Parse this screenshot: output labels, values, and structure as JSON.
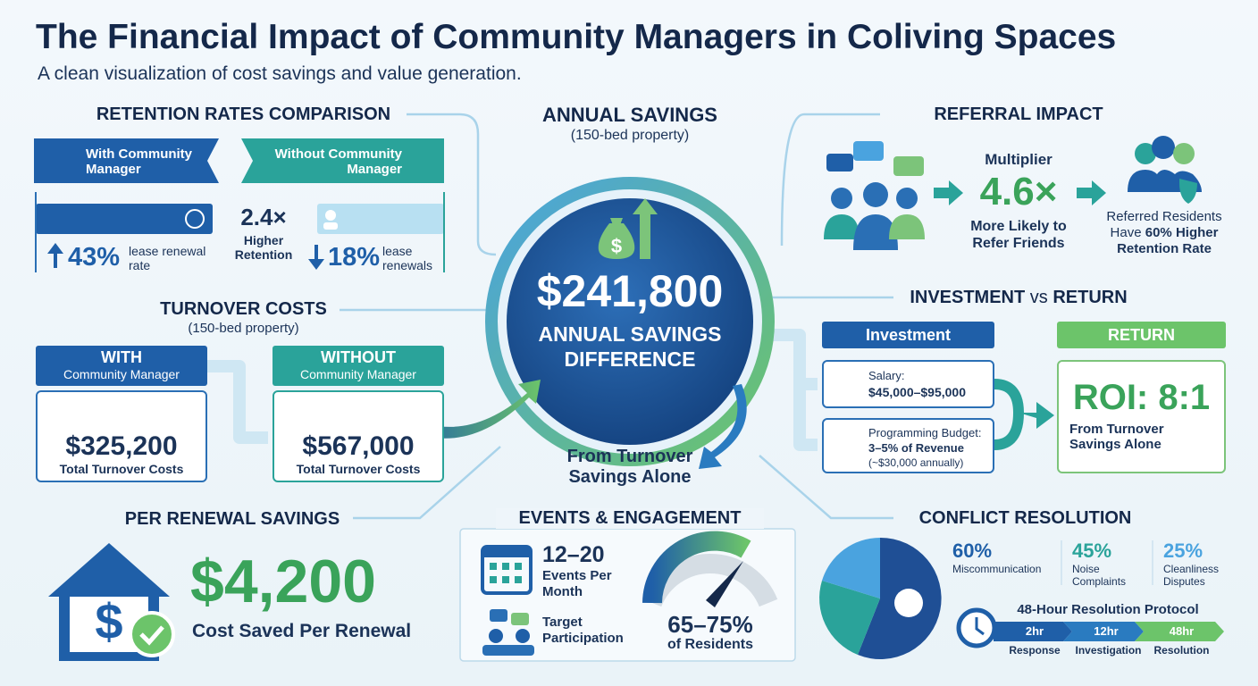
{
  "header": {
    "title": "The Financial Impact of Community Managers in Coliving Spaces",
    "subtitle": "A clean visualization of cost savings and value generation."
  },
  "retention": {
    "title": "RETENTION RATES COMPARISON",
    "with_label": "With Community Manager",
    "without_label": "Without Community Manager",
    "with_rate": "43%",
    "with_caption": "lease renewal rate",
    "without_rate": "18%",
    "without_caption": "lease renewals",
    "multiplier": "2.4×",
    "multiplier_caption": "Higher Retention"
  },
  "savings": {
    "title": "ANNUAL SAVINGS",
    "subtitle": "(150-bed property)",
    "amount": "$241,800",
    "caption": "ANNUAL SAVINGS DIFFERENCE",
    "note": "From Turnover Savings Alone"
  },
  "referral": {
    "title": "REFERRAL IMPACT",
    "multiplier_label": "Multiplier",
    "multiplier": "4.6×",
    "caption": "More Likely to Refer Friends",
    "note": "Referred Residents Have",
    "note_bold": "60% Higher Retention Rate"
  },
  "turnover": {
    "title": "TURNOVER COSTS",
    "subtitle": "(150-bed property)",
    "with_heading": "WITH",
    "with_sub": "Community Manager",
    "with_amount": "$325,200",
    "with_caption": "Total Turnover Costs",
    "without_heading": "WITHOUT",
    "without_sub": "Community Manager",
    "without_amount": "$567,000",
    "without_caption": "Total Turnover Costs"
  },
  "investment": {
    "title_1": "INVESTMENT",
    "title_vs": "vs",
    "title_2": "RETURN",
    "investment_heading": "Investment",
    "salary_label": "Salary:",
    "salary_value": "$45,000–$95,000",
    "programming_label": "Programming Budget:",
    "programming_value": "3–5% of Revenue",
    "programming_note": "(~$30,000 annually)",
    "return_heading": "RETURN",
    "roi": "ROI: 8:1",
    "roi_caption": "From Turnover Savings Alone"
  },
  "renewal": {
    "title": "PER RENEWAL SAVINGS",
    "amount": "$4,200",
    "caption": "Cost Saved Per Renewal"
  },
  "events": {
    "title": "EVENTS & ENGAGEMENT",
    "frequency": "12–20",
    "frequency_caption": "Events Per Month",
    "target_label": "Target Participation",
    "participation": "65–75%",
    "participation_caption": "of Residents"
  },
  "conflict": {
    "title": "CONFLICT RESOLUTION",
    "causes": [
      {
        "value": "60%",
        "label": "Miscommunication"
      },
      {
        "value": "45%",
        "label": "Noise Complaints"
      },
      {
        "value": "25%",
        "label": "Cleanliness Disputes"
      }
    ],
    "protocol_title": "48-Hour Resolution Protocol",
    "steps": [
      {
        "time": "2hr",
        "label": "Response"
      },
      {
        "time": "12hr",
        "label": "Investigation"
      },
      {
        "time": "48hr",
        "label": "Resolution"
      }
    ]
  }
}
